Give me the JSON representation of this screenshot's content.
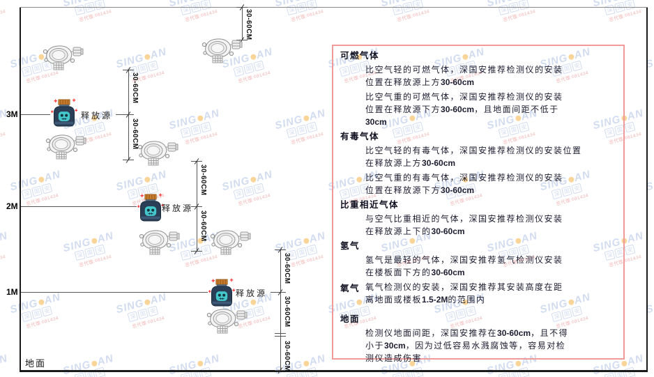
{
  "colors": {
    "panel_border": "#f09a9a",
    "watermark_blue": "#9db2de",
    "watermark_dot": "#f2a41f",
    "watermark_red": "#e05252",
    "line": "#555555",
    "frame": "#1a1a1a",
    "source_body": "#2a3e55",
    "source_cap": "#c97c2d",
    "source_face": "#43c7cb",
    "sparkle": "#ff3030"
  },
  "watermark": {
    "brand_left": "SING",
    "brand_right": "AN",
    "squares": [
      "深",
      "国",
      "安"
    ],
    "subtext": "总代理:081434"
  },
  "diagram": {
    "ground_label": "地面",
    "source_label": "释放源",
    "dim_label": "30-60CM",
    "height_markers": [
      "3M",
      "2M",
      "1M"
    ]
  },
  "panel": {
    "sections": [
      {
        "header": "可燃气体",
        "inline": false,
        "paragraphs": [
          [
            "比空气轻的可燃气体，深国安推荐检测仪的安装",
            "位置在释放源上方30-60cm"
          ],
          [
            "比空气重的可燃气体，深国安推荐检测仪的安装",
            "位置在释放源下方30-60cm，且地面间距不低于",
            "30cm"
          ]
        ]
      },
      {
        "header": "有毒气体",
        "inline": false,
        "paragraphs": [
          [
            "比空气轻的有毒气体，深国安推荐检测仪的安装位置",
            "在释放源上方30-60cm"
          ],
          [
            "比空气重的有毒气体，深国安推荐检测仪的安装",
            "位置在释放源下方30-60cm"
          ]
        ]
      },
      {
        "header": "比重相近气体",
        "inline": false,
        "paragraphs": [
          [
            "与空气比重相近的气体，深国安推荐检测仪安装",
            "在释放源上下的30-60cm"
          ]
        ]
      },
      {
        "header": "氢气",
        "inline": false,
        "paragraphs": [
          [
            "氢气是最轻的气体，深国安推荐氢气检测仪安装",
            "在楼板面下方的30-60cm"
          ]
        ]
      },
      {
        "header": "氧气",
        "inline": true,
        "paragraphs": [
          [
            "氧气检测仪的安装，深国安推荐其安装高度在距",
            "离地面或楼板1.5-2M的范围内"
          ]
        ]
      },
      {
        "header": "地面",
        "inline": false,
        "gap_before": true,
        "paragraphs": [
          [
            "检测仪地面间距，深国安推荐在30-60cm，且不得",
            "小于30cm，因为过低容易水溅腐蚀等，容易对检",
            "测仪造成伤害"
          ]
        ]
      }
    ]
  }
}
